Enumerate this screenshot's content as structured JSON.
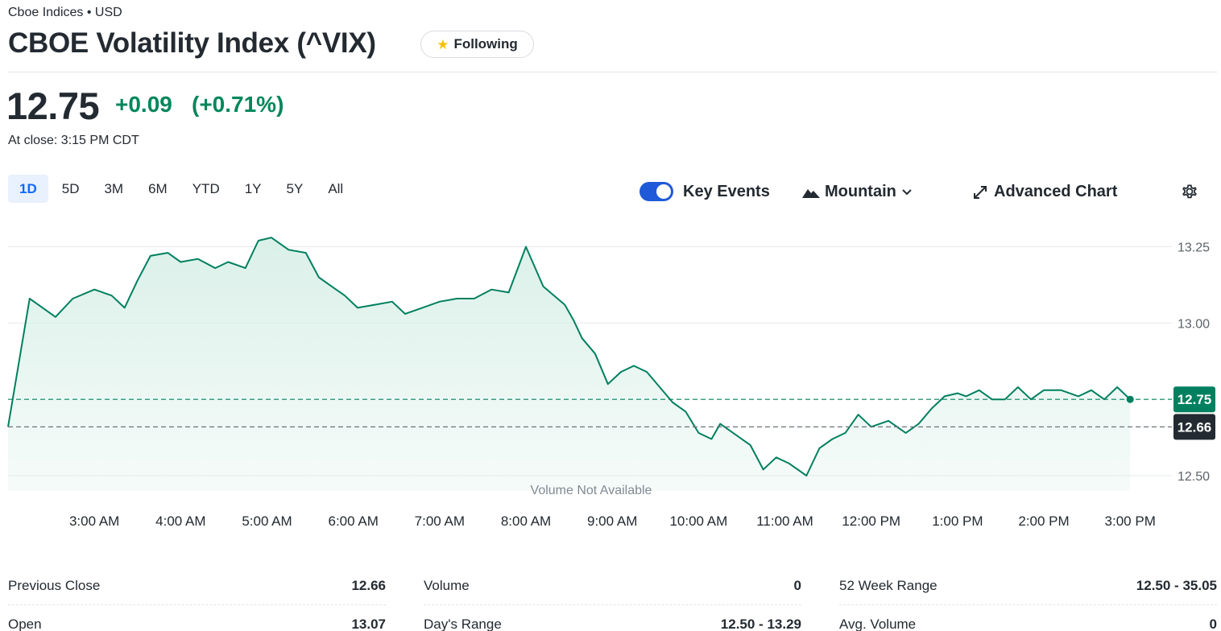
{
  "header": {
    "exchange": "Cboe Indices • USD",
    "title": "CBOE Volatility Index (^VIX)",
    "follow_label": "Following"
  },
  "quote": {
    "price": "12.75",
    "change": "+0.09",
    "change_pct": "(+0.71%)",
    "close_time": "At close: 3:15 PM CDT"
  },
  "ranges": [
    "1D",
    "5D",
    "3M",
    "6M",
    "YTD",
    "1Y",
    "5Y",
    "All"
  ],
  "active_range": "1D",
  "controls": {
    "key_events_label": "Key Events",
    "key_events_on": true,
    "chart_type_label": "Mountain",
    "advanced_label": "Advanced Chart"
  },
  "colors": {
    "line": "#00805f",
    "fill": "#dbf0e9",
    "up": "#00875a",
    "prev_close_tag": "#232a31",
    "accent": "#1e5ad7"
  },
  "icons": {
    "star": "star-icon",
    "mountain": "mountain-icon",
    "chevron": "chevron-down-icon",
    "expand": "expand-icon",
    "settings": "gear-icon"
  },
  "chart_data": {
    "type": "area",
    "x_ticks": [
      "3:00 AM",
      "4:00 AM",
      "5:00 AM",
      "6:00 AM",
      "7:00 AM",
      "8:00 AM",
      "9:00 AM",
      "10:00 AM",
      "11:00 AM",
      "12:00 PM",
      "1:00 PM",
      "2:00 PM",
      "3:00 PM"
    ],
    "y_ticks": [
      "13.25",
      "13.00",
      "12.50"
    ],
    "ylim": [
      12.45,
      13.32
    ],
    "xlim": [
      2.0,
      15.25
    ],
    "last_price_label": "12.75",
    "prev_close_label": "12.66",
    "last_price": 12.75,
    "prev_close": 12.66,
    "volume_note": "Volume Not Available",
    "x": [
      2.0,
      2.25,
      2.4,
      2.55,
      2.75,
      3.0,
      3.2,
      3.35,
      3.5,
      3.65,
      3.85,
      4.0,
      4.2,
      4.4,
      4.55,
      4.75,
      4.9,
      5.05,
      5.25,
      5.45,
      5.6,
      5.75,
      5.9,
      6.05,
      6.25,
      6.45,
      6.6,
      6.8,
      7.0,
      7.2,
      7.4,
      7.6,
      7.8,
      8.0,
      8.2,
      8.45,
      8.55,
      8.65,
      8.8,
      8.95,
      9.1,
      9.25,
      9.4,
      9.55,
      9.7,
      9.85,
      10.0,
      10.15,
      10.25,
      10.45,
      10.6,
      10.75,
      10.9,
      11.05,
      11.25,
      11.4,
      11.55,
      11.7,
      11.85,
      12.0,
      12.2,
      12.4,
      12.55,
      12.7,
      12.85,
      13.0,
      13.1,
      13.25,
      13.4,
      13.55,
      13.7,
      13.85,
      14.0,
      14.2,
      14.4,
      14.55,
      14.7,
      14.85,
      15.0
    ],
    "y": [
      12.66,
      13.08,
      13.05,
      13.02,
      13.08,
      13.11,
      13.09,
      13.05,
      13.14,
      13.22,
      13.23,
      13.2,
      13.21,
      13.18,
      13.2,
      13.18,
      13.27,
      13.28,
      13.24,
      13.23,
      13.15,
      13.12,
      13.09,
      13.05,
      13.06,
      13.07,
      13.03,
      13.05,
      13.07,
      13.08,
      13.08,
      13.11,
      13.1,
      13.25,
      13.12,
      13.06,
      13.01,
      12.95,
      12.9,
      12.8,
      12.84,
      12.86,
      12.84,
      12.79,
      12.74,
      12.71,
      12.64,
      12.62,
      12.67,
      12.63,
      12.6,
      12.52,
      12.56,
      12.54,
      12.5,
      12.59,
      12.62,
      12.64,
      12.7,
      12.66,
      12.68,
      12.64,
      12.67,
      12.72,
      12.76,
      12.77,
      12.76,
      12.78,
      12.75,
      12.75,
      12.79,
      12.75,
      12.78,
      12.78,
      12.76,
      12.78,
      12.75,
      12.79,
      12.75
    ]
  },
  "stats": [
    [
      {
        "label": "Previous Close",
        "value": "12.66"
      },
      {
        "label": "Open",
        "value": "13.07"
      }
    ],
    [
      {
        "label": "Volume",
        "value": "0"
      },
      {
        "label": "Day's Range",
        "value": "12.50 - 13.29"
      }
    ],
    [
      {
        "label": "52 Week Range",
        "value": "12.50 - 35.05"
      },
      {
        "label": "Avg. Volume",
        "value": "0"
      }
    ]
  ]
}
